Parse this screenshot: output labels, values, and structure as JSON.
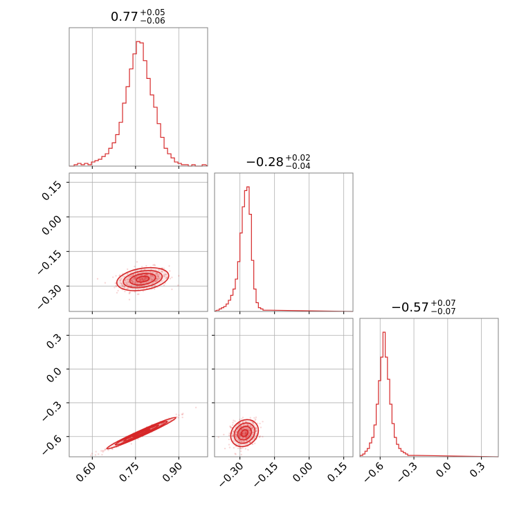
{
  "chart_data": {
    "type": "corner",
    "color": "#d62728",
    "grid": true,
    "params": [
      {
        "title": {
          "median": "0.77",
          "plus": "+0.05",
          "minus": "−0.06"
        },
        "range": [
          0.52,
          1.0
        ],
        "ticks": [
          0.6,
          0.75,
          0.9
        ],
        "tick_labels": [
          "0.60",
          "0.75",
          "0.90"
        ],
        "hist": {
          "x": [
            0.531,
            0.543,
            0.555,
            0.567,
            0.579,
            0.591,
            0.603,
            0.615,
            0.627,
            0.639,
            0.651,
            0.663,
            0.675,
            0.687,
            0.699,
            0.711,
            0.723,
            0.735,
            0.747,
            0.759,
            0.771,
            0.783,
            0.795,
            0.807,
            0.819,
            0.831,
            0.843,
            0.855,
            0.867,
            0.879,
            0.891,
            0.903,
            0.915,
            0.927,
            0.939,
            0.951,
            0.963,
            0.975,
            0.987
          ],
          "counts": [
            0,
            1,
            2,
            1,
            2,
            1,
            3,
            4,
            5,
            7,
            9,
            13,
            17,
            23,
            32,
            46,
            58,
            71,
            82,
            91,
            90,
            77,
            64,
            52,
            43,
            31,
            21,
            13,
            9,
            6,
            3,
            2,
            1,
            1,
            0,
            1,
            0,
            0,
            1
          ]
        }
      },
      {
        "title": {
          "median": "−0.28",
          "plus": "+0.02",
          "minus": "−0.04"
        },
        "range": [
          -0.41,
          0.19
        ],
        "ticks": [
          -0.3,
          -0.15,
          0.0,
          0.15
        ],
        "tick_labels": [
          "−0.30",
          "−0.15",
          "0.00",
          "0.15"
        ],
        "hist": {
          "x": [
            -0.395,
            -0.385,
            -0.375,
            -0.365,
            -0.355,
            -0.345,
            -0.335,
            -0.325,
            -0.315,
            -0.305,
            -0.295,
            -0.285,
            -0.275,
            -0.265,
            -0.255,
            -0.245,
            -0.235,
            -0.225,
            -0.215,
            -0.205,
            -0.195,
            -0.185,
            -0.175
          ],
          "counts": [
            1,
            2,
            3,
            4,
            6,
            9,
            13,
            18,
            26,
            40,
            63,
            84,
            97,
            100,
            78,
            41,
            18,
            7,
            3,
            2,
            1,
            1,
            1
          ]
        }
      },
      {
        "title": {
          "median": "−0.57",
          "plus": "+0.07",
          "minus": "−0.07"
        },
        "range": [
          -0.78,
          0.45
        ],
        "ticks": [
          -0.6,
          -0.3,
          0.0,
          0.3
        ],
        "tick_labels": [
          "−0.6",
          "−0.3",
          "0.0",
          "0.3"
        ],
        "hist": {
          "x": [
            -0.765,
            -0.745,
            -0.725,
            -0.705,
            -0.685,
            -0.665,
            -0.645,
            -0.625,
            -0.605,
            -0.585,
            -0.565,
            -0.545,
            -0.525,
            -0.505,
            -0.485,
            -0.465,
            -0.445,
            -0.425,
            -0.405,
            -0.385,
            -0.365,
            -0.345,
            -0.325,
            -0.305,
            -0.285
          ],
          "counts": [
            1,
            2,
            4,
            6,
            10,
            14,
            23,
            38,
            55,
            72,
            90,
            72,
            56,
            38,
            24,
            14,
            9,
            6,
            4,
            3,
            2,
            1,
            1,
            1,
            1
          ]
        }
      }
    ],
    "pairs": [
      {
        "x_param": 0,
        "y_param": 1,
        "center": [
          0.775,
          -0.27
        ],
        "sd": [
          0.045,
          0.025
        ],
        "corr": 0.3
      },
      {
        "x_param": 0,
        "y_param": 2,
        "center": [
          0.77,
          -0.57
        ],
        "sd": [
          0.06,
          0.07
        ],
        "corr": 0.98
      },
      {
        "x_param": 1,
        "y_param": 2,
        "center": [
          -0.28,
          -0.57
        ],
        "sd": [
          0.03,
          0.06
        ],
        "corr": 0.2
      }
    ]
  }
}
